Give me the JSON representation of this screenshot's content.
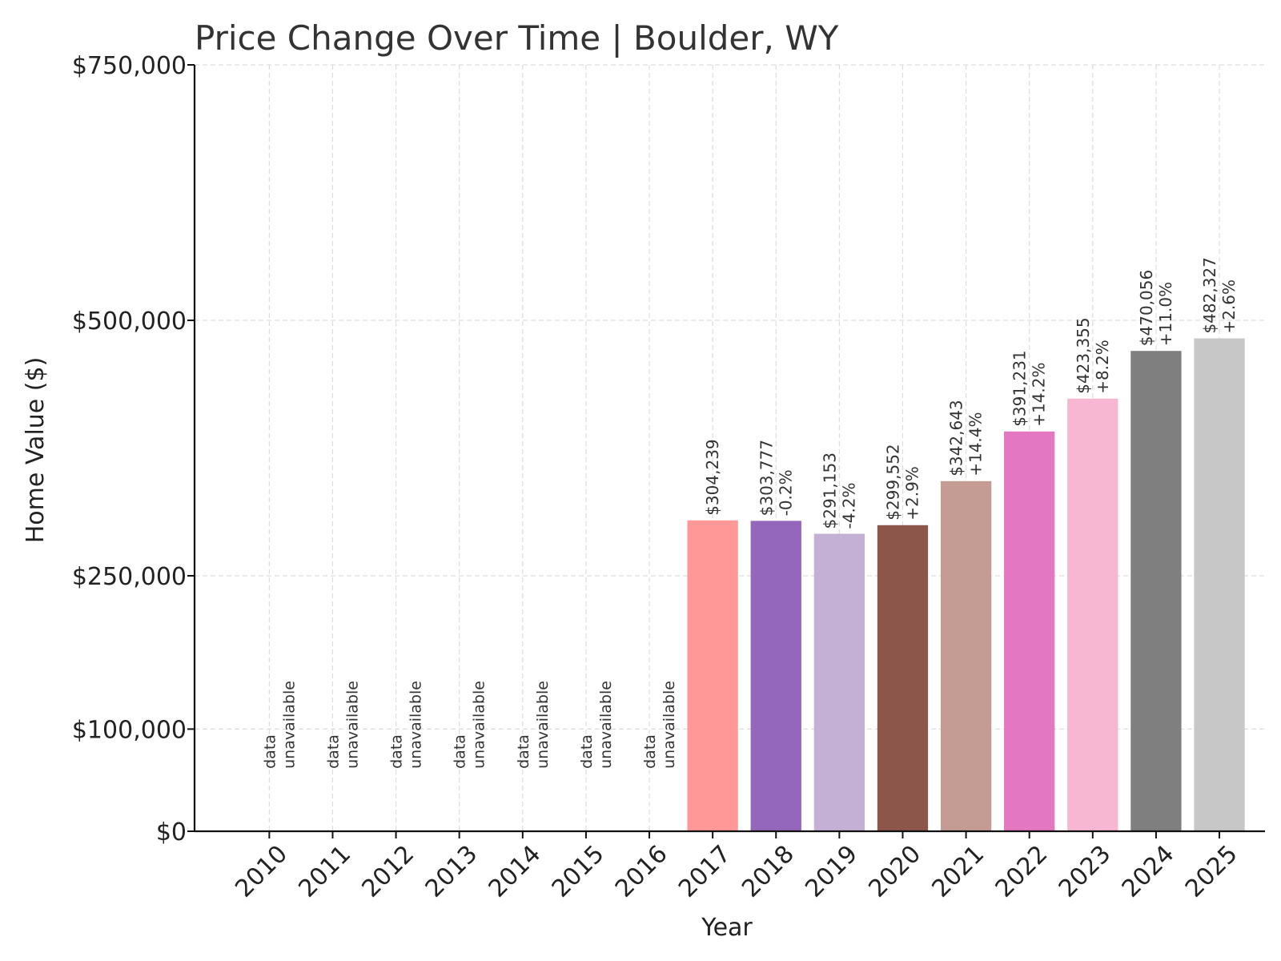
{
  "chart_data": {
    "type": "bar",
    "title": "Price Change Over Time | Boulder, WY",
    "xlabel": "Year",
    "ylabel": "Home Value ($)",
    "ylim": [
      0,
      750000
    ],
    "yticks": [
      0,
      100000,
      250000,
      500000,
      750000
    ],
    "ytick_labels": [
      "$0",
      "$100,000",
      "$250,000",
      "$500,000",
      "$750,000"
    ],
    "grid": true,
    "categories": [
      "2010",
      "2011",
      "2012",
      "2013",
      "2014",
      "2015",
      "2016",
      "2017",
      "2018",
      "2019",
      "2020",
      "2021",
      "2022",
      "2023",
      "2024",
      "2025"
    ],
    "values": [
      null,
      null,
      null,
      null,
      null,
      null,
      null,
      304239,
      303777,
      291153,
      299552,
      342643,
      391231,
      423355,
      470056,
      482327
    ],
    "value_labels": [
      "",
      "",
      "",
      "",
      "",
      "",
      "",
      "$304,239",
      "$303,777",
      "$291,153",
      "$299,552",
      "$342,643",
      "$391,231",
      "$423,355",
      "$470,056",
      "$482,327"
    ],
    "change_labels": [
      "",
      "",
      "",
      "",
      "",
      "",
      "",
      "",
      "-0.2%",
      "-4.2%",
      "+2.9%",
      "+14.4%",
      "+14.2%",
      "+8.2%",
      "+11.0%",
      "+2.6%"
    ],
    "unavailable_label": [
      "data",
      "unavailable"
    ],
    "colors": [
      "#1f77b4",
      "#ff7f0e",
      "#2ca02c",
      "#d62728",
      "#9467bd",
      "#8c564b",
      "#e377c2",
      "#ff9896",
      "#9467bd",
      "#c5b0d5",
      "#8c564b",
      "#c49c94",
      "#e377c2",
      "#f7b6d2",
      "#7f7f7f",
      "#c7c7c7"
    ]
  }
}
